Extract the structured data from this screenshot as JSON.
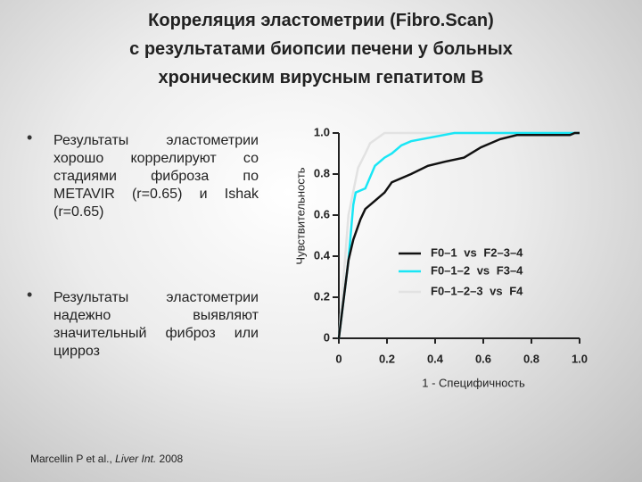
{
  "title": [
    "Корреляция эластометрии (Fibro.Scan)",
    "с результатами биопсии печени у больных",
    "хроническим вирусным гепатитом В"
  ],
  "bullets": [
    "Результаты эластометрии хорошо коррелируют со стадиями фиброза по METAVIR (r=0.65) и Ishak (r=0.65)",
    "Результаты эластометрии надежно выявляют значительный фиброз или цирроз"
  ],
  "citation": {
    "authors": "Marcellin P et al., ",
    "journal": "Liver Int.",
    "year": " 2008"
  },
  "chart_data": {
    "type": "line",
    "x_label": "1 - Специфичность",
    "y_label": "Чувствительность",
    "xlim": [
      0,
      1
    ],
    "ylim": [
      0,
      1
    ],
    "xticks": [
      0,
      0.2,
      0.4,
      0.6,
      0.8,
      {
        "value": 1,
        "label": "1.0"
      }
    ],
    "yticks": [
      0,
      0.2,
      0.4,
      0.6,
      0.8,
      {
        "value": 1,
        "label": "1.0"
      }
    ],
    "series": [
      {
        "name": "F0–1 vs F2–3–4",
        "color": "#111111",
        "x": [
          0,
          0.04,
          0.06,
          0.09,
          0.11,
          0.15,
          0.19,
          0.22,
          0.3,
          0.37,
          0.44,
          0.52,
          0.59,
          0.63,
          0.67,
          0.74,
          0.96,
          0.98,
          1
        ],
        "values": [
          0,
          0.38,
          0.48,
          0.58,
          0.63,
          0.67,
          0.71,
          0.76,
          0.8,
          0.84,
          0.86,
          0.88,
          0.93,
          0.95,
          0.97,
          0.99,
          0.99,
          1,
          1
        ]
      },
      {
        "name": "F0–1–2 vs F3–4",
        "color": "#19e6f5",
        "x": [
          0,
          0.04,
          0.06,
          0.07,
          0.11,
          0.15,
          0.19,
          0.22,
          0.26,
          0.3,
          0.48,
          1
        ],
        "values": [
          0,
          0.38,
          0.65,
          0.71,
          0.73,
          0.84,
          0.88,
          0.9,
          0.94,
          0.96,
          1,
          1
        ]
      },
      {
        "name": "F0–1–2–3 vs F4",
        "color": "#e2e2e2",
        "x": [
          0,
          0.04,
          0.08,
          0.11,
          0.13,
          0.19,
          1
        ],
        "values": [
          0,
          0.6,
          0.83,
          0.9,
          0.95,
          1,
          1
        ]
      }
    ]
  }
}
